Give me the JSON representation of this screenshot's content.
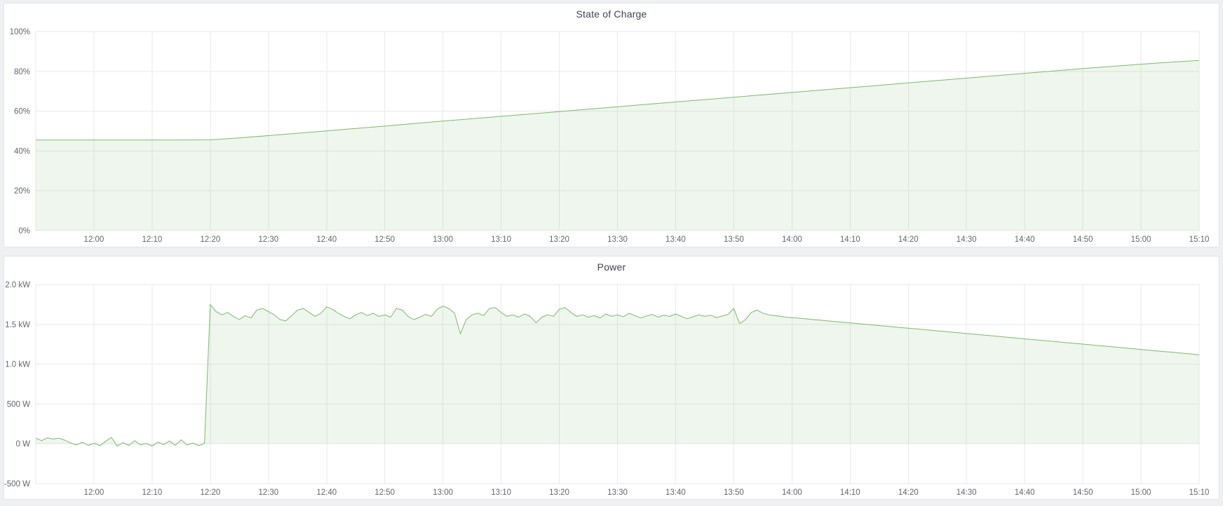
{
  "page": {
    "background": "#eef0f2",
    "panel_background": "#ffffff"
  },
  "colors": {
    "series_line": "#7db96e",
    "series_fill": "rgba(126,184,110,0.12)",
    "grid": "#e8eaec",
    "tick_label": "#63666e",
    "title": "#41444f"
  },
  "panels": [
    {
      "title": "State of Charge"
    },
    {
      "title": "Power"
    }
  ],
  "chart_data": [
    {
      "type": "area",
      "title": "State of Charge",
      "xlabel": "",
      "ylabel": "",
      "unit": "%",
      "legend": false,
      "grid": true,
      "x_time_start": "11:50",
      "x_time_end": "15:10",
      "x_minutes_start": 0,
      "x_step_minutes": 5,
      "xlim": [
        0,
        200
      ],
      "ylim": [
        0,
        100
      ],
      "yticks": [
        {
          "v": 0,
          "label": "0%"
        },
        {
          "v": 20,
          "label": "20%"
        },
        {
          "v": 40,
          "label": "40%"
        },
        {
          "v": 60,
          "label": "60%"
        },
        {
          "v": 80,
          "label": "80%"
        },
        {
          "v": 100,
          "label": "100%"
        }
      ],
      "xticks": [
        {
          "v": 10,
          "label": "12:00"
        },
        {
          "v": 20,
          "label": "12:10"
        },
        {
          "v": 30,
          "label": "12:20"
        },
        {
          "v": 40,
          "label": "12:30"
        },
        {
          "v": 50,
          "label": "12:40"
        },
        {
          "v": 60,
          "label": "12:50"
        },
        {
          "v": 70,
          "label": "13:00"
        },
        {
          "v": 80,
          "label": "13:10"
        },
        {
          "v": 90,
          "label": "13:20"
        },
        {
          "v": 100,
          "label": "13:30"
        },
        {
          "v": 110,
          "label": "13:40"
        },
        {
          "v": 120,
          "label": "13:50"
        },
        {
          "v": 130,
          "label": "14:00"
        },
        {
          "v": 140,
          "label": "14:10"
        },
        {
          "v": 150,
          "label": "14:20"
        },
        {
          "v": 160,
          "label": "14:30"
        },
        {
          "v": 170,
          "label": "14:40"
        },
        {
          "v": 180,
          "label": "14:50"
        },
        {
          "v": 190,
          "label": "15:00"
        },
        {
          "v": 200,
          "label": "15:10"
        }
      ],
      "values": [
        45.5,
        45.5,
        45.5,
        45.5,
        45.5,
        45.5,
        45.6,
        46.6,
        47.7,
        48.9,
        50.1,
        51.3,
        52.5,
        53.8,
        55.0,
        56.2,
        57.4,
        58.6,
        59.8,
        61.0,
        62.2,
        63.4,
        64.6,
        65.8,
        67.0,
        68.2,
        69.4,
        70.6,
        71.8,
        73.0,
        74.2,
        75.4,
        76.6,
        77.8,
        79.0,
        80.2,
        81.4,
        82.5,
        83.6,
        84.6,
        85.5
      ]
    },
    {
      "type": "area",
      "title": "Power",
      "xlabel": "",
      "ylabel": "",
      "unit": "W",
      "legend": false,
      "grid": true,
      "x_time_start": "11:50",
      "x_time_end": "15:10",
      "x_minutes_start": 0,
      "x_step_minutes": 1,
      "xlim": [
        0,
        200
      ],
      "ylim": [
        -500,
        2000
      ],
      "yticks": [
        {
          "v": -500,
          "label": "-500 W"
        },
        {
          "v": 0,
          "label": "0 W"
        },
        {
          "v": 500,
          "label": "500 W"
        },
        {
          "v": 1000,
          "label": "1.0 kW"
        },
        {
          "v": 1500,
          "label": "1.5 kW"
        },
        {
          "v": 2000,
          "label": "2.0 kW"
        }
      ],
      "xticks": [
        {
          "v": 10,
          "label": "12:00"
        },
        {
          "v": 20,
          "label": "12:10"
        },
        {
          "v": 30,
          "label": "12:20"
        },
        {
          "v": 40,
          "label": "12:30"
        },
        {
          "v": 50,
          "label": "12:40"
        },
        {
          "v": 60,
          "label": "12:50"
        },
        {
          "v": 70,
          "label": "13:00"
        },
        {
          "v": 80,
          "label": "13:10"
        },
        {
          "v": 90,
          "label": "13:20"
        },
        {
          "v": 100,
          "label": "13:30"
        },
        {
          "v": 110,
          "label": "13:40"
        },
        {
          "v": 120,
          "label": "13:50"
        },
        {
          "v": 130,
          "label": "14:00"
        },
        {
          "v": 140,
          "label": "14:10"
        },
        {
          "v": 150,
          "label": "14:20"
        },
        {
          "v": 160,
          "label": "14:30"
        },
        {
          "v": 170,
          "label": "14:40"
        },
        {
          "v": 180,
          "label": "14:50"
        },
        {
          "v": 190,
          "label": "15:00"
        },
        {
          "v": 200,
          "label": "15:10"
        }
      ],
      "values": [
        70,
        40,
        75,
        60,
        70,
        45,
        10,
        -15,
        20,
        -20,
        5,
        -25,
        30,
        80,
        -30,
        15,
        -20,
        40,
        -15,
        5,
        -30,
        20,
        -10,
        35,
        -20,
        50,
        -15,
        10,
        -25,
        5,
        1750,
        1660,
        1620,
        1650,
        1600,
        1560,
        1610,
        1580,
        1680,
        1700,
        1660,
        1620,
        1560,
        1545,
        1610,
        1680,
        1700,
        1650,
        1600,
        1640,
        1720,
        1690,
        1640,
        1600,
        1570,
        1620,
        1650,
        1610,
        1640,
        1600,
        1620,
        1590,
        1700,
        1680,
        1600,
        1560,
        1590,
        1625,
        1600,
        1690,
        1730,
        1700,
        1640,
        1380,
        1560,
        1620,
        1640,
        1610,
        1700,
        1710,
        1650,
        1600,
        1620,
        1590,
        1630,
        1600,
        1520,
        1590,
        1620,
        1600,
        1690,
        1710,
        1650,
        1600,
        1620,
        1590,
        1610,
        1580,
        1630,
        1600,
        1620,
        1595,
        1640,
        1610,
        1580,
        1605,
        1625,
        1590,
        1615,
        1600,
        1630,
        1600,
        1570,
        1595,
        1620,
        1600,
        1615,
        1585,
        1605,
        1625,
        1700,
        1510,
        1560,
        1650,
        1680,
        1640,
        1620,
        1610,
        1600,
        1590,
        1585,
        1578,
        1572,
        1565,
        1558,
        1552,
        1545,
        1538,
        1532,
        1525,
        1518,
        1512,
        1505,
        1498,
        1492,
        1485,
        1478,
        1472,
        1465,
        1458,
        1452,
        1445,
        1438,
        1432,
        1425,
        1418,
        1412,
        1405,
        1398,
        1392,
        1385,
        1378,
        1372,
        1365,
        1358,
        1352,
        1345,
        1338,
        1332,
        1325,
        1318,
        1312,
        1305,
        1298,
        1292,
        1285,
        1278,
        1272,
        1265,
        1258,
        1252,
        1245,
        1238,
        1232,
        1225,
        1218,
        1212,
        1205,
        1198,
        1192,
        1185,
        1178,
        1172,
        1165,
        1158,
        1152,
        1145,
        1138,
        1132,
        1125,
        1118
      ]
    }
  ]
}
